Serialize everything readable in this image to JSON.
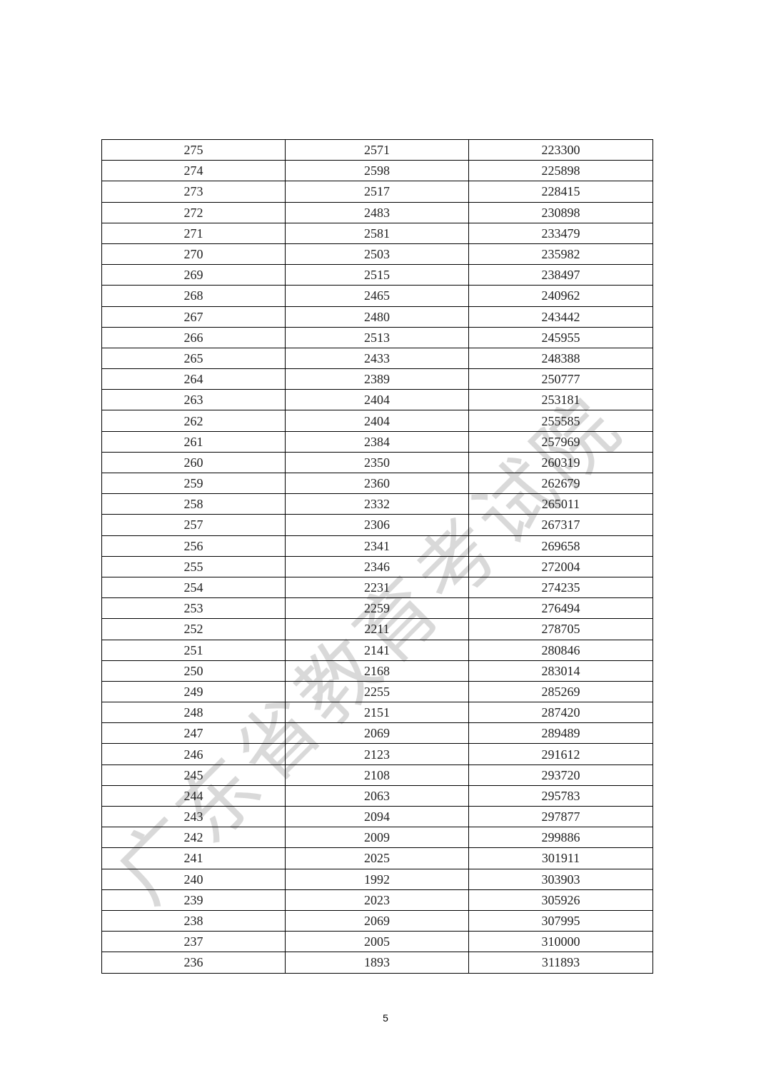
{
  "table": {
    "rows": [
      [
        "275",
        "2571",
        "223300"
      ],
      [
        "274",
        "2598",
        "225898"
      ],
      [
        "273",
        "2517",
        "228415"
      ],
      [
        "272",
        "2483",
        "230898"
      ],
      [
        "271",
        "2581",
        "233479"
      ],
      [
        "270",
        "2503",
        "235982"
      ],
      [
        "269",
        "2515",
        "238497"
      ],
      [
        "268",
        "2465",
        "240962"
      ],
      [
        "267",
        "2480",
        "243442"
      ],
      [
        "266",
        "2513",
        "245955"
      ],
      [
        "265",
        "2433",
        "248388"
      ],
      [
        "264",
        "2389",
        "250777"
      ],
      [
        "263",
        "2404",
        "253181"
      ],
      [
        "262",
        "2404",
        "255585"
      ],
      [
        "261",
        "2384",
        "257969"
      ],
      [
        "260",
        "2350",
        "260319"
      ],
      [
        "259",
        "2360",
        "262679"
      ],
      [
        "258",
        "2332",
        "265011"
      ],
      [
        "257",
        "2306",
        "267317"
      ],
      [
        "256",
        "2341",
        "269658"
      ],
      [
        "255",
        "2346",
        "272004"
      ],
      [
        "254",
        "2231",
        "274235"
      ],
      [
        "253",
        "2259",
        "276494"
      ],
      [
        "252",
        "2211",
        "278705"
      ],
      [
        "251",
        "2141",
        "280846"
      ],
      [
        "250",
        "2168",
        "283014"
      ],
      [
        "249",
        "2255",
        "285269"
      ],
      [
        "248",
        "2151",
        "287420"
      ],
      [
        "247",
        "2069",
        "289489"
      ],
      [
        "246",
        "2123",
        "291612"
      ],
      [
        "245",
        "2108",
        "293720"
      ],
      [
        "244",
        "2063",
        "295783"
      ],
      [
        "243",
        "2094",
        "297877"
      ],
      [
        "242",
        "2009",
        "299886"
      ],
      [
        "241",
        "2025",
        "301911"
      ],
      [
        "240",
        "1992",
        "303903"
      ],
      [
        "239",
        "2023",
        "305926"
      ],
      [
        "238",
        "2069",
        "307995"
      ],
      [
        "237",
        "2005",
        "310000"
      ],
      [
        "236",
        "1893",
        "311893"
      ]
    ]
  },
  "watermark": "广东省教育考试院",
  "page_number": "5"
}
